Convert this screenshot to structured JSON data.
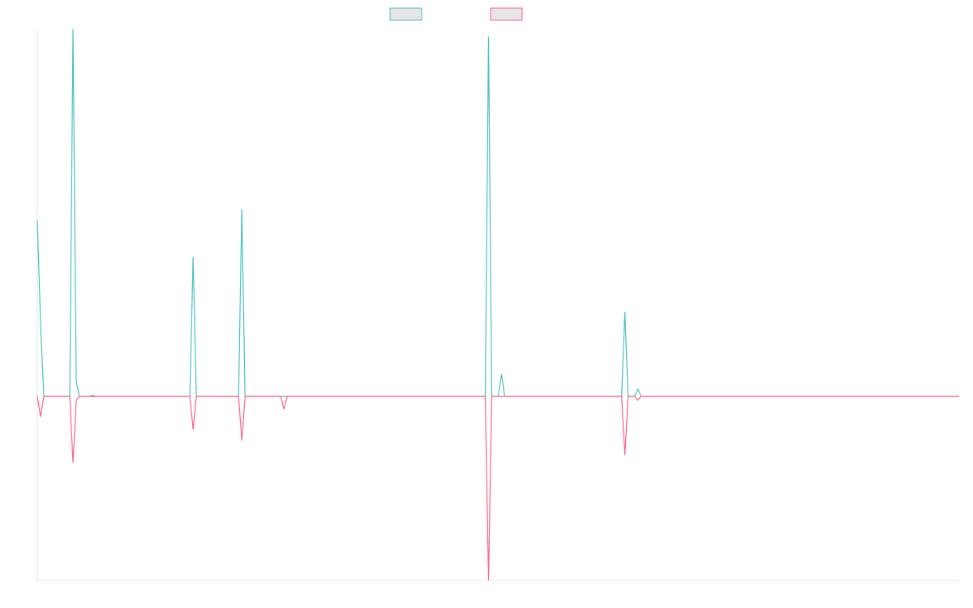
{
  "chart_data": {
    "type": "line",
    "title": "",
    "xlabel": "",
    "ylabel": "",
    "x_range": [
      0,
      284
    ],
    "ylim": [
      -1.0,
      1.0
    ],
    "grid": false,
    "legend_position": "top-center",
    "series": [
      {
        "name": "",
        "color": "#4bc0c0",
        "fill": "#e6e6e6",
        "points": [
          [
            0,
            0.48
          ],
          [
            1,
            0.2
          ],
          [
            2,
            0.0
          ],
          [
            10,
            0.0
          ],
          [
            11,
            1.0
          ],
          [
            12,
            0.04
          ],
          [
            13,
            0.0
          ],
          [
            16,
            0.0
          ],
          [
            17,
            0.003
          ],
          [
            18,
            0.0
          ],
          [
            47,
            0.0
          ],
          [
            48,
            0.38
          ],
          [
            49,
            0.0
          ],
          [
            62,
            0.0
          ],
          [
            63,
            0.51
          ],
          [
            64,
            0.0
          ],
          [
            138,
            0.0
          ],
          [
            139,
            0.98
          ],
          [
            140,
            0.0
          ],
          [
            142,
            0.0
          ],
          [
            143,
            0.06
          ],
          [
            144,
            0.0
          ],
          [
            180,
            0.0
          ],
          [
            181,
            0.23
          ],
          [
            182,
            0.0
          ],
          [
            184,
            0.0
          ],
          [
            185,
            0.02
          ],
          [
            186,
            0.0
          ],
          [
            284,
            0.0
          ]
        ]
      },
      {
        "name": "",
        "color": "#ff6384",
        "fill": "#e6e6e6",
        "points": [
          [
            0,
            0.0
          ],
          [
            1,
            -0.11
          ],
          [
            2,
            0.0
          ],
          [
            10,
            0.0
          ],
          [
            11,
            -0.36
          ],
          [
            12,
            -0.02
          ],
          [
            13,
            0.0
          ],
          [
            47,
            0.0
          ],
          [
            48,
            -0.18
          ],
          [
            49,
            0.0
          ],
          [
            62,
            0.0
          ],
          [
            63,
            -0.24
          ],
          [
            64,
            0.0
          ],
          [
            75,
            0.0
          ],
          [
            76,
            -0.07
          ],
          [
            77,
            0.0
          ],
          [
            138,
            0.0
          ],
          [
            139,
            -1.0
          ],
          [
            140,
            0.0
          ],
          [
            180,
            0.0
          ],
          [
            181,
            -0.32
          ],
          [
            182,
            0.0
          ],
          [
            184,
            0.0
          ],
          [
            185,
            -0.02
          ],
          [
            186,
            0.0
          ],
          [
            284,
            0.0
          ]
        ]
      }
    ]
  }
}
